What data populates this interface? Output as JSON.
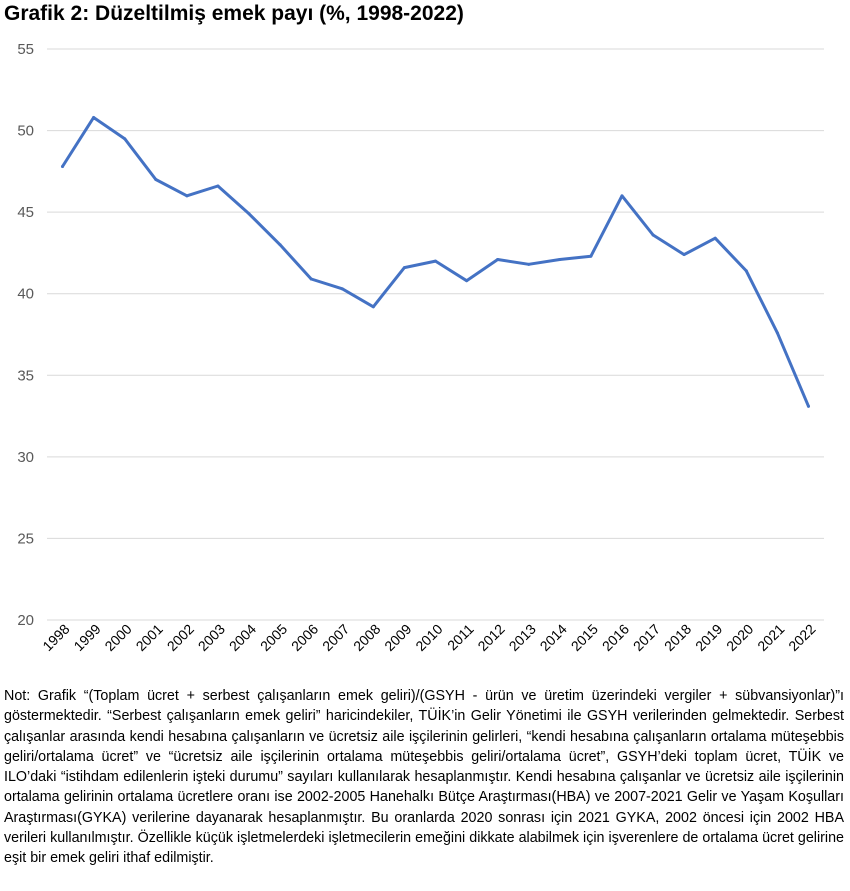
{
  "title": "Grafik 2: Düzeltilmiş emek payı (%, 1998-2022)",
  "chart_data": {
    "type": "line",
    "title": "Grafik 2: Düzeltilmiş emek payı (%, 1998-2022)",
    "xlabel": "",
    "ylabel": "",
    "ylim": [
      20,
      55
    ],
    "yticks": [
      20,
      25,
      30,
      35,
      40,
      45,
      50,
      55
    ],
    "grid": true,
    "legend": "none",
    "categories": [
      "1998",
      "1999",
      "2000",
      "2001",
      "2002",
      "2003",
      "2004",
      "2005",
      "2006",
      "2007",
      "2008",
      "2009",
      "2010",
      "2011",
      "2012",
      "2013",
      "2014",
      "2015",
      "2016",
      "2017",
      "2018",
      "2019",
      "2020",
      "2021",
      "2022"
    ],
    "series": [
      {
        "color": "#4472c4",
        "values": [
          47.8,
          50.8,
          49.5,
          47.0,
          46.0,
          46.6,
          44.9,
          43.0,
          40.9,
          40.3,
          39.2,
          41.6,
          42.0,
          40.8,
          42.1,
          41.8,
          42.1,
          42.3,
          46.0,
          43.6,
          42.4,
          43.4,
          41.4,
          37.6,
          33.1
        ]
      }
    ]
  },
  "note": "Not: Grafik “(Toplam ücret + serbest çalışanların emek geliri)/(GSYH - ürün ve üretim üzerindeki vergiler + sübvansiyonlar)”ı göstermektedir. “Serbest çalışanların emek geliri” haricindekiler, TÜİK’in Gelir Yönetimi ile GSYH verilerinden gelmektedir. Serbest çalışanlar arasında kendi hesabına çalışanların ve ücretsiz aile işçilerinin gelirleri, “kendi hesabına çalışanların ortalama müteşebbis geliri/ortalama ücret” ve “ücretsiz aile işçilerinin ortalama müteşebbis geliri/ortalama ücret”, GSYH’deki toplam ücret, TÜİK ve ILO’daki “istihdam edilenlerin işteki durumu” sayıları kullanılarak hesaplanmıştır. Kendi hesabına çalışanlar ve ücretsiz aile işçilerinin ortalama gelirinin ortalama ücretlere oranı ise 2002-2005 Hanehalkı Bütçe Araştırması(HBA) ve 2007-2021 Gelir ve Yaşam Koşulları Araştırması(GYKA) verilerine dayanarak hesaplanmıştır. Bu oranlarda 2020 sonrası için 2021 GYKA, 2002 öncesi için 2002 HBA verileri kullanılmıştır. Özellikle küçük işletmelerdeki işletmecilerin emeğini dikkate alabilmek için işverenlere de ortalama ücret gelirine eşit bir emek geliri ithaf edilmiştir."
}
